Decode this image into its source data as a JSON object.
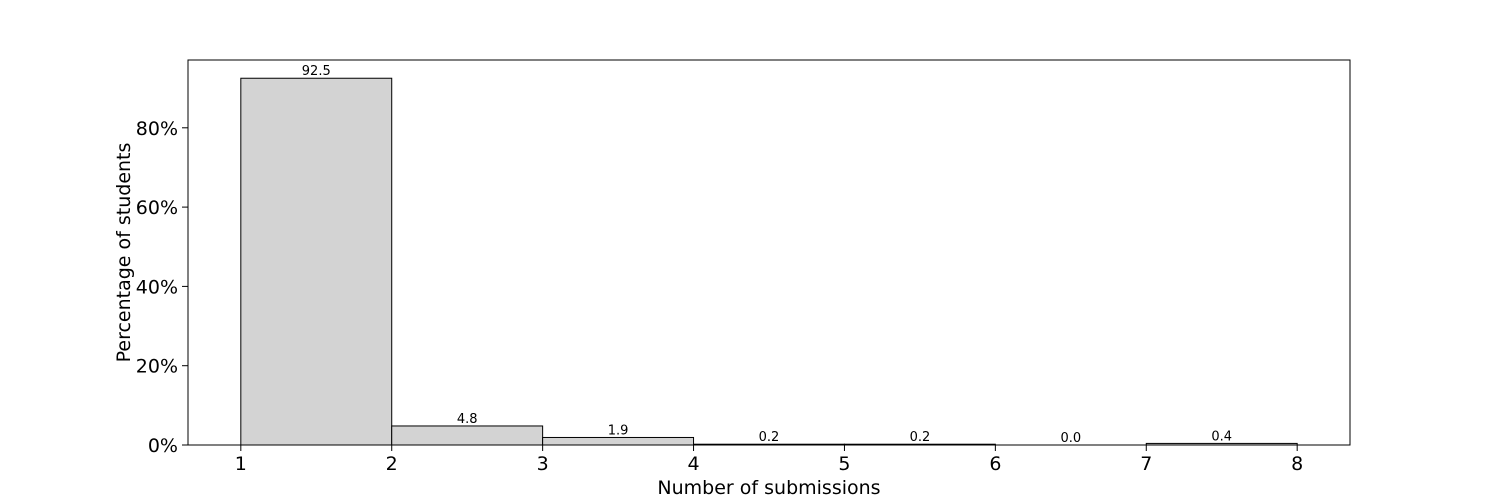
{
  "chart_data": {
    "type": "bar",
    "bins": [
      {
        "start": 1,
        "end": 2,
        "value": 92.5,
        "label": "92.5"
      },
      {
        "start": 2,
        "end": 3,
        "value": 4.8,
        "label": "4.8"
      },
      {
        "start": 3,
        "end": 4,
        "value": 1.9,
        "label": "1.9"
      },
      {
        "start": 4,
        "end": 5,
        "value": 0.2,
        "label": "0.2"
      },
      {
        "start": 5,
        "end": 6,
        "value": 0.2,
        "label": "0.2"
      },
      {
        "start": 6,
        "end": 7,
        "value": 0.0,
        "label": "0.0"
      },
      {
        "start": 7,
        "end": 8,
        "value": 0.4,
        "label": "0.4"
      }
    ],
    "xlabel": "Number of submissions",
    "ylabel": "Percentage of students",
    "xlim": [
      0.65,
      8.35
    ],
    "ylim": [
      0,
      97.1
    ],
    "xticks": [
      {
        "value": 1,
        "label": "1"
      },
      {
        "value": 2,
        "label": "2"
      },
      {
        "value": 3,
        "label": "3"
      },
      {
        "value": 4,
        "label": "4"
      },
      {
        "value": 5,
        "label": "5"
      },
      {
        "value": 6,
        "label": "6"
      },
      {
        "value": 7,
        "label": "7"
      },
      {
        "value": 8,
        "label": "8"
      }
    ],
    "yticks": [
      {
        "value": 0,
        "label": "0%"
      },
      {
        "value": 20,
        "label": "20%"
      },
      {
        "value": 40,
        "label": "40%"
      },
      {
        "value": 60,
        "label": "60%"
      },
      {
        "value": 80,
        "label": "80%"
      }
    ],
    "bar_fill": "#d3d3d3",
    "bar_edge": "#000000",
    "grid": false,
    "legend": "none"
  }
}
